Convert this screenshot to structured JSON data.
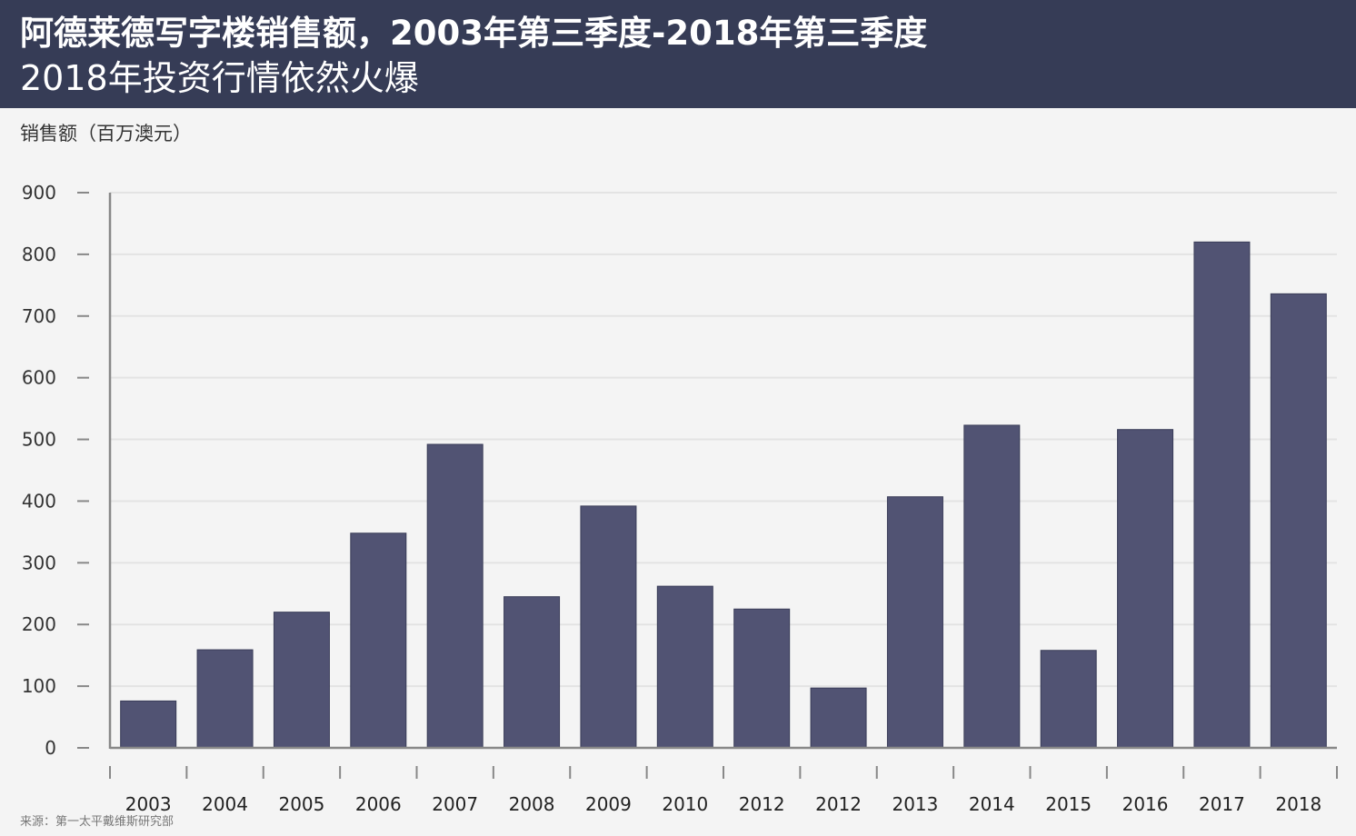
{
  "header": {
    "title": "阿德莱德写字楼销售额，2003年第三季度-2018年第三季度",
    "subtitle": "2018年投资行情依然火爆"
  },
  "footer": {
    "source": "来源：第一太平戴维斯研究部"
  },
  "colors": {
    "header_bg": "#363c56",
    "bar": "#515373",
    "background": "#f4f4f4",
    "axis": "#888888",
    "grid": "#e3e3e3"
  },
  "chart_data": {
    "type": "bar",
    "title": "阿德莱德写字楼销售额，2003年第三季度-2018年第三季度",
    "subtitle": "2018年投资行情依然火爆",
    "ylabel": "销售额（百万澳元）",
    "xlabel": "",
    "ylim": [
      0,
      900
    ],
    "yticks": [
      0,
      100,
      200,
      300,
      400,
      500,
      600,
      700,
      800,
      900
    ],
    "grid": true,
    "categories": [
      "2003",
      "2004",
      "2005",
      "2006",
      "2007",
      "2008",
      "2009",
      "2010",
      "2012",
      "2012",
      "2013",
      "2014",
      "2015",
      "2016",
      "2017",
      "2018"
    ],
    "values": [
      76,
      159,
      220,
      348,
      492,
      245,
      392,
      262,
      225,
      97,
      407,
      523,
      158,
      516,
      820,
      736
    ]
  }
}
